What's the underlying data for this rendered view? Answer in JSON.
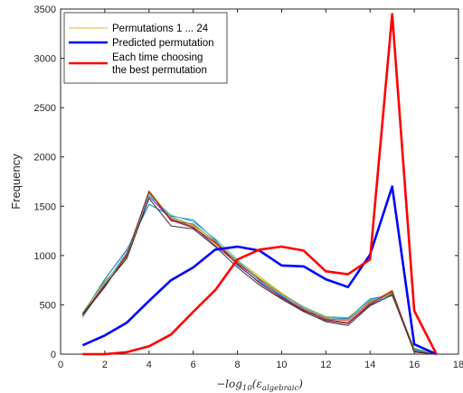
{
  "chart_data": {
    "type": "line",
    "title": "",
    "xlabel": "−log10(εalgebraic)",
    "xlabel_parts": {
      "pre": "−log",
      "sub": "10",
      "open": "(",
      "eps": "ε",
      "eps_sub": "algebraic",
      "close": ")"
    },
    "ylabel": "Frequency",
    "xlim": [
      0,
      18
    ],
    "ylim": [
      0,
      3500
    ],
    "xticks": [
      0,
      2,
      4,
      6,
      8,
      10,
      12,
      14,
      16,
      18
    ],
    "yticks": [
      0,
      500,
      1000,
      1500,
      2000,
      2500,
      3000,
      3500
    ],
    "grid": false,
    "legend_position": "top-left",
    "x": [
      1,
      2,
      3,
      4,
      5,
      6,
      7,
      8,
      9,
      10,
      11,
      12,
      13,
      14,
      15,
      16,
      17
    ],
    "series": [
      {
        "name": "Permutations 1 ... 24",
        "color": "#EDB120",
        "values": [
          380,
          700,
          1000,
          1660,
          1380,
          1300,
          1120,
          950,
          790,
          620,
          470,
          350,
          350,
          520,
          650,
          20,
          0
        ]
      },
      {
        "name": "",
        "color": "#0072BD",
        "values": [
          410,
          760,
          1060,
          1520,
          1400,
          1360,
          1160,
          900,
          730,
          590,
          440,
          370,
          360,
          560,
          600,
          50,
          0
        ]
      },
      {
        "name": "",
        "color": "#D95319",
        "values": [
          390,
          720,
          1020,
          1640,
          1350,
          1320,
          1140,
          930,
          760,
          600,
          460,
          360,
          340,
          530,
          630,
          30,
          0
        ]
      },
      {
        "name": "",
        "color": "#7E2F8E",
        "values": [
          400,
          690,
          990,
          1600,
          1370,
          1290,
          1100,
          920,
          750,
          580,
          450,
          340,
          310,
          500,
          620,
          40,
          0
        ]
      },
      {
        "name": "",
        "color": "#77AC30",
        "values": [
          420,
          740,
          980,
          1630,
          1390,
          1310,
          1150,
          940,
          770,
          610,
          480,
          380,
          370,
          540,
          610,
          60,
          0
        ]
      },
      {
        "name": "",
        "color": "#4DBEEE",
        "values": [
          370,
          710,
          1040,
          1610,
          1410,
          1340,
          1170,
          960,
          740,
          600,
          470,
          370,
          350,
          550,
          590,
          40,
          0
        ]
      },
      {
        "name": "",
        "color": "#A2142F",
        "values": [
          395,
          680,
          1010,
          1650,
          1360,
          1280,
          1130,
          910,
          720,
          570,
          440,
          350,
          320,
          510,
          640,
          30,
          0
        ]
      },
      {
        "name": "",
        "color": "#333333",
        "values": [
          405,
          700,
          970,
          1580,
          1300,
          1270,
          1090,
          880,
          700,
          560,
          430,
          330,
          290,
          490,
          600,
          20,
          0
        ]
      },
      {
        "name": "Predicted permutation",
        "color": "#0000FF",
        "values": [
          90,
          190,
          320,
          540,
          750,
          880,
          1060,
          1090,
          1050,
          900,
          890,
          760,
          680,
          1010,
          1700,
          100,
          0
        ]
      },
      {
        "name": "Each time choosing the best permutation",
        "color": "#FF0000",
        "values": [
          0,
          0,
          20,
          80,
          200,
          430,
          650,
          960,
          1060,
          1090,
          1050,
          840,
          810,
          960,
          3450,
          440,
          0
        ]
      }
    ],
    "legend": {
      "entries": [
        {
          "label": "Permutations 1 ... 24",
          "color": "#EDB120",
          "width": 1
        },
        {
          "label": "Predicted permutation",
          "color": "#0000FF",
          "width": 2.5
        },
        {
          "label": "Each time choosing",
          "label_line2": "the best permutation",
          "color": "#FF0000",
          "width": 2.5
        }
      ]
    }
  }
}
